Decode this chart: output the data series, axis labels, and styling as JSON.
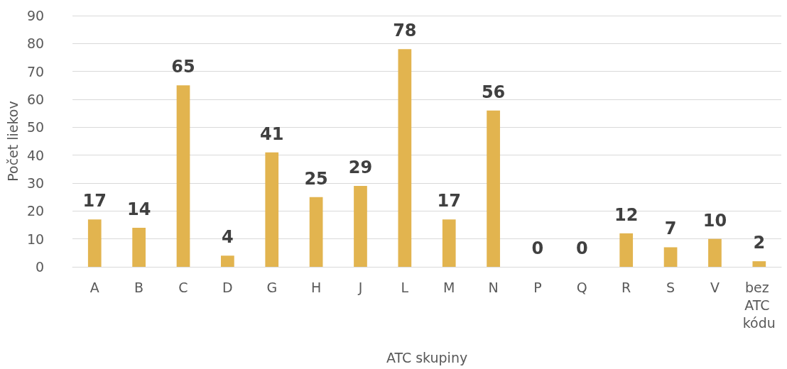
{
  "chart_data": {
    "type": "bar",
    "xlabel": "ATC skupiny",
    "ylabel": "Počet liekov",
    "categories": [
      "A",
      "B",
      "C",
      "D",
      "G",
      "H",
      "J",
      "L",
      "M",
      "N",
      "P",
      "Q",
      "R",
      "S",
      "V",
      "bez ATC kódu"
    ],
    "values": [
      17,
      14,
      65,
      4,
      41,
      25,
      29,
      78,
      17,
      56,
      0,
      0,
      12,
      7,
      10,
      2
    ],
    "color": "#e2b44f",
    "ylim": [
      0,
      90
    ],
    "yticks": [
      0,
      10,
      20,
      30,
      40,
      50,
      60,
      70,
      80,
      90
    ],
    "grid": "y",
    "data_labels": true
  }
}
